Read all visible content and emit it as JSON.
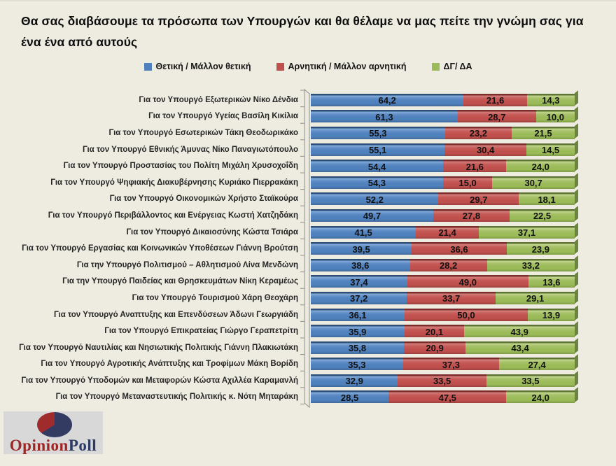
{
  "title": "Θα σας διαβάσουμε τα πρόσωπα των Υπουργών και θα θέλαμε να μας πείτε την γνώμη σας για ένα ένα από αυτούς",
  "colors": {
    "background": "#EEECE1",
    "positive": "#4F81BD",
    "negative": "#C0504D",
    "dontknow": "#9BBB59",
    "logo_background": "#D8D8D8",
    "logo_red": "#9E2626",
    "logo_navy": "#2D3A64"
  },
  "legend": [
    {
      "label": "Θετική / Μάλλον θετική",
      "color": "#4F81BD"
    },
    {
      "label": "Αρνητική / Μάλλον αρνητική",
      "color": "#C0504D"
    },
    {
      "label": "ΔΓ/ ΔΑ",
      "color": "#9BBB59"
    }
  ],
  "logo": {
    "text_primary": "Opinion",
    "text_secondary": "Poll"
  },
  "chart_data": {
    "type": "bar",
    "orientation": "horizontal-stacked",
    "title": "Θα σας διαβάσουμε τα πρόσωπα των Υπουργών και θα θέλαμε να μας πείτε την γνώμη σας για ένα ένα από αυτούς",
    "xlim": [
      0,
      100
    ],
    "grid": false,
    "legend_position": "top",
    "value_format": "decimal-comma-one-place",
    "categories": [
      "Για τον Υπουργό Εξωτερικών Νίκο Δένδια",
      "Για τον Υπουργό Υγείας Βασίλη Κικίλια",
      "Για τον Υπουργό Εσωτερικών Τάκη Θεοδωρικάκο",
      "Για τον Υπουργό Εθνικής Άμυνας Νίκο Παναγιωτόπουλο",
      "Για τον Υπουργό Προστασίας του Πολίτη Μιχάλη Χρυσοχοΐδη",
      "Για τον Υπουργό Ψηφιακής Διακυβέρνησης Κυριάκο Πιερρακάκη",
      "Για τον Υπουργό Οικονομικών Χρήστο Σταϊκούρα",
      "Για τον Υπουργό Περιβάλλοντος και Ενέργειας Κωστή Χατζηδάκη",
      "Για τον Υπουργό Δικαιοσύνης Κώστα Τσιάρα",
      "Για τον Υπουργό Εργασίας και Κοινωνικών Υποθέσεων Γιάννη Βρούτση",
      "Για την Υπουργό Πολιτισμού – Αθλητισμού Λίνα Μενδώνη",
      "Για την Υπουργό Παιδείας και Θρησκευμάτων Νίκη Κεραμέως",
      "Για τον Υπουργό Τουρισμού Χάρη Θεοχάρη",
      "Για τον Υπουργό Αναπτυξης και Επενδύσεων Άδωνι Γεωργιάδη",
      "Για τον Υπουργό Επικρατείας Γιώργο Γεραπετρίτη",
      "Για τον Υπουργό Ναυτιλίας και Νησιωτικής Πολιτικής Γιάννη Πλακιωτάκη",
      "Για τον Υπουργό Αγροτικής Ανάπτυξης και Τροφίμων Μάκη Βορίδη",
      "Για τον Υπουργό Υποδομών και Μεταφορών Κώστα Αχιλλέα Καραμανλή",
      "Για τον Υπουργό Μεταναστευτικής Πολιτικής κ. Νότη Μηταράκη"
    ],
    "series": [
      {
        "name": "Θετική / Μάλλον θετική",
        "color": "#4F81BD",
        "values": [
          64.2,
          61.3,
          55.3,
          55.1,
          54.4,
          54.3,
          52.2,
          49.7,
          41.5,
          39.5,
          38.6,
          37.4,
          37.2,
          36.1,
          35.9,
          35.8,
          35.3,
          32.9,
          28.5
        ]
      },
      {
        "name": "Αρνητική / Μάλλον αρνητική",
        "color": "#C0504D",
        "values": [
          21.6,
          28.7,
          23.2,
          30.4,
          21.6,
          15.0,
          29.7,
          27.8,
          21.4,
          36.6,
          28.2,
          49.0,
          33.7,
          50.0,
          20.1,
          20.9,
          37.3,
          33.5,
          47.5
        ]
      },
      {
        "name": "ΔΓ/ ΔΑ",
        "color": "#9BBB59",
        "values": [
          14.3,
          10.0,
          21.5,
          14.5,
          24.0,
          30.7,
          18.1,
          22.5,
          37.1,
          23.9,
          33.2,
          13.6,
          29.1,
          13.9,
          43.9,
          43.4,
          27.4,
          33.5,
          24.0
        ]
      }
    ]
  }
}
